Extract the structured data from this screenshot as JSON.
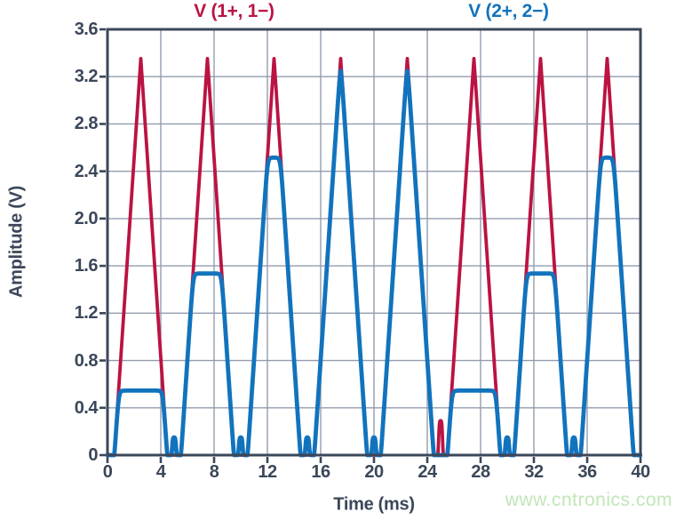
{
  "watermark": {
    "text": "www.cntronics.com",
    "color": "#c0e6b8"
  },
  "chart_data": {
    "type": "line",
    "xlabel": "Time (ms)",
    "ylabel": "Amplitude (V)",
    "xlim": [
      0,
      40
    ],
    "ylim": [
      0,
      3.6
    ],
    "x_ticks": [
      0,
      4,
      8,
      12,
      16,
      20,
      24,
      28,
      32,
      36,
      40
    ],
    "x_tick_labels": [
      "0",
      "4",
      "8",
      "12",
      "16",
      "20",
      "24",
      "28",
      "32",
      "36",
      "40"
    ],
    "y_ticks": [
      0,
      0.4,
      0.8,
      1.2,
      1.6,
      2.0,
      2.4,
      2.8,
      3.2,
      3.6
    ],
    "y_tick_labels": [
      "0",
      "0.4",
      "0.8",
      "1.2",
      "1.6",
      "2.0",
      "2.4",
      "2.8",
      "3.2",
      "3.6"
    ],
    "grid": true,
    "grid_color": "#939cae",
    "frame_color": "#3b4759",
    "legend_position": "top",
    "legend": [
      {
        "label": "V (1+, 1−)",
        "color": "#bb1342",
        "center_x_ms": 9.5
      },
      {
        "label": "V (2+, 2−)",
        "color": "#1273bd",
        "center_x_ms": 30.1
      }
    ],
    "series": [
      {
        "name": "V (1+, 1−)",
        "color": "#bb1342",
        "type": "triangle-train",
        "description": "Periodic triangle pulses sitting on a 0 V baseline",
        "period_ms": 5,
        "first_peak_t_ms": 2.5,
        "peak_v": 3.37,
        "half_base_ms": 2.0,
        "baseline_v": 0,
        "glitch_pulses": [
          {
            "t_ms": 25,
            "height_v": 0.28
          }
        ]
      },
      {
        "name": "V (2+, 2−)",
        "color": "#1273bd",
        "type": "clipped-triangle-train",
        "description": "Same triangle train but amplitude-limited each period at a stepped clip level, with small glitch pulses at period boundaries",
        "period_ms": 5,
        "first_peak_t_ms": 2.5,
        "peak_v": 3.37,
        "half_base_ms": 2.0,
        "baseline_v": 0,
        "clip_levels_v_per_period": [
          0.58,
          1.57,
          2.55,
          3.35,
          3.35,
          0.58,
          1.57,
          2.55
        ],
        "glitch_pulses": [
          {
            "t_ms": 5,
            "height_v": 0.14
          },
          {
            "t_ms": 10,
            "height_v": 0.14
          },
          {
            "t_ms": 15,
            "height_v": 0.14
          },
          {
            "t_ms": 20,
            "height_v": 0.14
          },
          {
            "t_ms": 30,
            "height_v": 0.14
          },
          {
            "t_ms": 35,
            "height_v": 0.14
          }
        ]
      }
    ]
  }
}
